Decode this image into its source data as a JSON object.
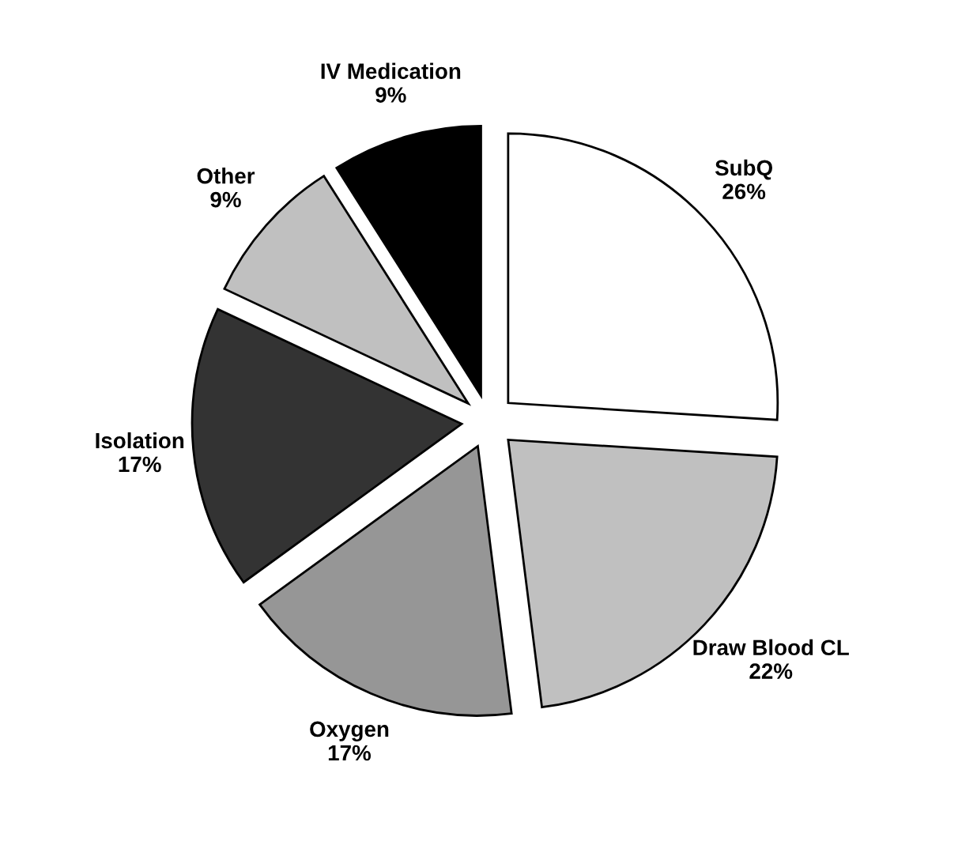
{
  "chart_data": {
    "type": "pie",
    "categories": [
      "SubQ",
      "Draw Blood CL",
      "Oxygen",
      "Isolation",
      "Other",
      "IV Medication"
    ],
    "values": [
      26,
      22,
      17,
      17,
      9,
      9
    ],
    "value_labels": [
      "26%",
      "22%",
      "17%",
      "17%",
      "9%",
      "9%"
    ],
    "colors": [
      "#ffffff",
      "#c0c0c0",
      "#969696",
      "#333333",
      "#c0c0c0",
      "#000000"
    ],
    "legend": false
  }
}
